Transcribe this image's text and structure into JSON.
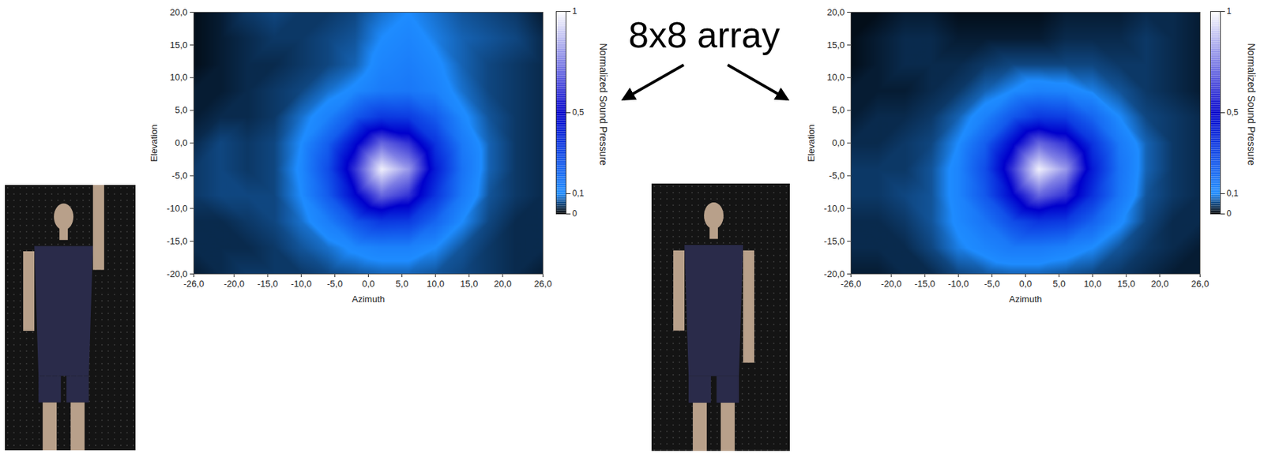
{
  "annotation": "8x8 array",
  "chart_data": [
    {
      "type": "heatmap",
      "xlabel": "Azimuth",
      "ylabel": "Elevation",
      "xlim": [
        -26,
        26
      ],
      "ylim": [
        -20,
        20
      ],
      "xticks": [
        {
          "value": -26,
          "label": "-26,0"
        },
        {
          "value": -20,
          "label": "-20,0"
        },
        {
          "value": -15,
          "label": "-15,0"
        },
        {
          "value": -10,
          "label": "-10,0"
        },
        {
          "value": -5,
          "label": "-5,0"
        },
        {
          "value": 0,
          "label": "0,0"
        },
        {
          "value": 5,
          "label": "5,0"
        },
        {
          "value": 10,
          "label": "10,0"
        },
        {
          "value": 15,
          "label": "15,0"
        },
        {
          "value": 20,
          "label": "20,0"
        },
        {
          "value": 26,
          "label": "26,0"
        }
      ],
      "yticks": [
        {
          "value": -20,
          "label": "-20,0"
        },
        {
          "value": -15,
          "label": "-15,0"
        },
        {
          "value": -10,
          "label": "-10,0"
        },
        {
          "value": -5,
          "label": "-5,0"
        },
        {
          "value": 0,
          "label": "0,0"
        },
        {
          "value": 5,
          "label": "5,0"
        },
        {
          "value": 10,
          "label": "10,0"
        },
        {
          "value": 15,
          "label": "15,0"
        },
        {
          "value": 20,
          "label": "20,0"
        }
      ],
      "x": [
        -26,
        -22,
        -18,
        -14,
        -10,
        -6,
        -2,
        2,
        6,
        10,
        14,
        18,
        22,
        26
      ],
      "y": [
        -20,
        -16,
        -12,
        -8,
        -4,
        0,
        4,
        8,
        12,
        16,
        20
      ],
      "z": [
        [
          0.02,
          0.03,
          0.04,
          0.04,
          0.04,
          0.05,
          0.06,
          0.07,
          0.07,
          0.06,
          0.05,
          0.04,
          0.03,
          0.02
        ],
        [
          0.03,
          0.03,
          0.03,
          0.04,
          0.06,
          0.08,
          0.11,
          0.13,
          0.13,
          0.1,
          0.06,
          0.04,
          0.03,
          0.03
        ],
        [
          0.03,
          0.03,
          0.04,
          0.05,
          0.08,
          0.14,
          0.26,
          0.34,
          0.33,
          0.21,
          0.1,
          0.05,
          0.03,
          0.03
        ],
        [
          0.04,
          0.05,
          0.05,
          0.05,
          0.1,
          0.24,
          0.48,
          0.7,
          0.6,
          0.35,
          0.15,
          0.06,
          0.04,
          0.03
        ],
        [
          0.04,
          0.05,
          0.04,
          0.05,
          0.11,
          0.28,
          0.6,
          0.97,
          0.8,
          0.42,
          0.17,
          0.07,
          0.04,
          0.03
        ],
        [
          0.03,
          0.05,
          0.04,
          0.05,
          0.1,
          0.23,
          0.47,
          0.7,
          0.6,
          0.35,
          0.15,
          0.07,
          0.04,
          0.03
        ],
        [
          0.02,
          0.03,
          0.03,
          0.04,
          0.08,
          0.13,
          0.25,
          0.34,
          0.33,
          0.24,
          0.11,
          0.06,
          0.04,
          0.03
        ],
        [
          0.02,
          0.02,
          0.03,
          0.04,
          0.05,
          0.08,
          0.11,
          0.15,
          0.16,
          0.13,
          0.08,
          0.05,
          0.04,
          0.03
        ],
        [
          0.01,
          0.02,
          0.03,
          0.03,
          0.04,
          0.05,
          0.07,
          0.12,
          0.14,
          0.11,
          0.07,
          0.05,
          0.04,
          0.03
        ],
        [
          0.01,
          0.02,
          0.03,
          0.04,
          0.04,
          0.05,
          0.06,
          0.1,
          0.12,
          0.09,
          0.07,
          0.06,
          0.05,
          0.03
        ],
        [
          0.01,
          0.02,
          0.04,
          0.05,
          0.04,
          0.04,
          0.05,
          0.08,
          0.1,
          0.08,
          0.06,
          0.05,
          0.04,
          0.02
        ]
      ],
      "colorbar": {
        "label": "Normalized Sound Pressure",
        "lim": [
          0,
          1
        ],
        "ticks": [
          0,
          {
            "value": 0.1,
            "label": "0,1"
          },
          {
            "value": 0.5,
            "label": "0,5"
          },
          1
        ],
        "colors": [
          "#000000",
          "#1e8cff",
          "#0000cc",
          "#ffffff"
        ]
      }
    },
    {
      "type": "heatmap",
      "xlabel": "Azimuth",
      "ylabel": "Elevation",
      "xlim": [
        -26,
        26
      ],
      "ylim": [
        -20,
        20
      ],
      "xticks": [
        {
          "value": -26,
          "label": "-26,0"
        },
        {
          "value": -20,
          "label": "-20,0"
        },
        {
          "value": -15,
          "label": "-15,0"
        },
        {
          "value": -10,
          "label": "-10,0"
        },
        {
          "value": -5,
          "label": "-5,0"
        },
        {
          "value": 0,
          "label": "0,0"
        },
        {
          "value": 5,
          "label": "5,0"
        },
        {
          "value": 10,
          "label": "10,0"
        },
        {
          "value": 15,
          "label": "15,0"
        },
        {
          "value": 20,
          "label": "20,0"
        },
        {
          "value": 26,
          "label": "26,0"
        }
      ],
      "yticks": [
        {
          "value": -20,
          "label": "-20,0"
        },
        {
          "value": -15,
          "label": "-15,0"
        },
        {
          "value": -10,
          "label": "-10,0"
        },
        {
          "value": -5,
          "label": "-5,0"
        },
        {
          "value": 0,
          "label": "0,0"
        },
        {
          "value": 5,
          "label": "5,0"
        },
        {
          "value": 10,
          "label": "10,0"
        },
        {
          "value": 15,
          "label": "15,0"
        },
        {
          "value": 20,
          "label": "20,0"
        }
      ],
      "x": [
        -26,
        -22,
        -18,
        -14,
        -10,
        -6,
        -2,
        2,
        6,
        10,
        14,
        18,
        22,
        26
      ],
      "y": [
        -20,
        -16,
        -12,
        -8,
        -4,
        0,
        4,
        8,
        12,
        16,
        20
      ],
      "z": [
        [
          0.02,
          0.02,
          0.03,
          0.03,
          0.05,
          0.06,
          0.07,
          0.07,
          0.06,
          0.05,
          0.04,
          0.03,
          0.02,
          0.02
        ],
        [
          0.03,
          0.03,
          0.03,
          0.05,
          0.09,
          0.12,
          0.15,
          0.15,
          0.13,
          0.1,
          0.06,
          0.04,
          0.03,
          0.02
        ],
        [
          0.03,
          0.03,
          0.04,
          0.06,
          0.11,
          0.17,
          0.28,
          0.35,
          0.33,
          0.22,
          0.11,
          0.05,
          0.03,
          0.03
        ],
        [
          0.04,
          0.04,
          0.05,
          0.06,
          0.12,
          0.25,
          0.48,
          0.7,
          0.6,
          0.36,
          0.16,
          0.06,
          0.04,
          0.03
        ],
        [
          0.04,
          0.04,
          0.04,
          0.06,
          0.12,
          0.28,
          0.6,
          0.97,
          0.8,
          0.42,
          0.17,
          0.07,
          0.04,
          0.03
        ],
        [
          0.03,
          0.03,
          0.04,
          0.05,
          0.1,
          0.23,
          0.47,
          0.7,
          0.6,
          0.35,
          0.15,
          0.07,
          0.04,
          0.03
        ],
        [
          0.02,
          0.03,
          0.03,
          0.04,
          0.07,
          0.13,
          0.25,
          0.34,
          0.32,
          0.21,
          0.1,
          0.05,
          0.04,
          0.03
        ],
        [
          0.02,
          0.02,
          0.02,
          0.03,
          0.04,
          0.07,
          0.1,
          0.13,
          0.12,
          0.09,
          0.06,
          0.04,
          0.03,
          0.02
        ],
        [
          0.01,
          0.02,
          0.03,
          0.03,
          0.03,
          0.04,
          0.05,
          0.05,
          0.05,
          0.05,
          0.04,
          0.04,
          0.03,
          0.02
        ],
        [
          0.01,
          0.02,
          0.03,
          0.03,
          0.02,
          0.02,
          0.02,
          0.02,
          0.03,
          0.03,
          0.03,
          0.04,
          0.03,
          0.02
        ],
        [
          0.01,
          0.01,
          0.02,
          0.02,
          0.01,
          0.01,
          0.01,
          0.01,
          0.02,
          0.02,
          0.02,
          0.03,
          0.03,
          0.02
        ]
      ],
      "colorbar": {
        "label": "Normalized Sound Pressure",
        "lim": [
          0,
          1
        ],
        "ticks": [
          0,
          {
            "value": 0.1,
            "label": "0,1"
          },
          {
            "value": 0.5,
            "label": "0,5"
          },
          1
        ],
        "colors": [
          "#000000",
          "#1e8cff",
          "#0000cc",
          "#ffffff"
        ]
      }
    }
  ]
}
